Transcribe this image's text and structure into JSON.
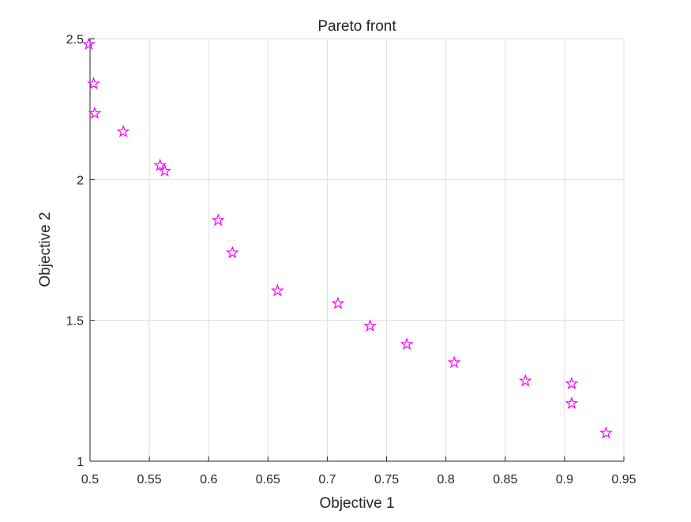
{
  "chart_data": {
    "type": "scatter",
    "title": "Pareto front",
    "xlabel": "Objective 1",
    "ylabel": "Objective 2",
    "xlim": [
      0.5,
      0.95
    ],
    "ylim": [
      1,
      2.5
    ],
    "xticks": [
      "0.5",
      "0.55",
      "0.6",
      "0.65",
      "0.7",
      "0.75",
      "0.8",
      "0.85",
      "0.9",
      "0.95"
    ],
    "yticks": [
      "1",
      "1.5",
      "2",
      "2.5"
    ],
    "grid": true,
    "marker": "pentagram",
    "marker_color": "#ff00ff",
    "series": [
      {
        "x": [
          0.499,
          0.503,
          0.504,
          0.528,
          0.559,
          0.563,
          0.608,
          0.62,
          0.658,
          0.709,
          0.736,
          0.767,
          0.807,
          0.867,
          0.906,
          0.906,
          0.935
        ],
        "y": [
          2.48,
          2.34,
          2.235,
          2.17,
          2.05,
          2.03,
          1.855,
          1.74,
          1.605,
          1.56,
          1.48,
          1.415,
          1.35,
          1.285,
          1.275,
          1.205,
          1.1
        ]
      }
    ]
  }
}
